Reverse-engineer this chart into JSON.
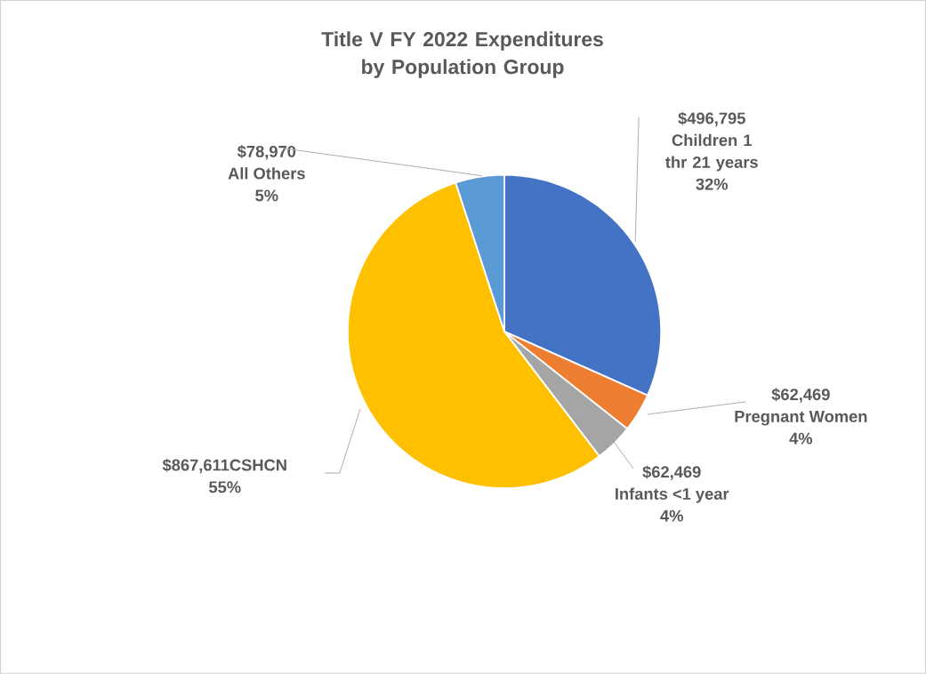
{
  "chart_data": {
    "type": "pie",
    "title": "Title V FY 2022 Expenditures by Population Group",
    "categories": [
      "Children 1 thr 21 years",
      "Pregnant Women",
      "Infants <1 year",
      "CSHCN",
      "All Others"
    ],
    "values": [
      496795,
      62469,
      62469,
      867611,
      78970
    ],
    "colors": [
      "#4472c4",
      "#ed7d31",
      "#a5a5a5",
      "#ffc000",
      "#5b9bd5"
    ],
    "value_labels": [
      "$496,795",
      "$62,469",
      "$62,469",
      "$867,611",
      "$78,970"
    ],
    "annotations": [
      "32%",
      "4%",
      "4%",
      "55%",
      "5%"
    ]
  }
}
